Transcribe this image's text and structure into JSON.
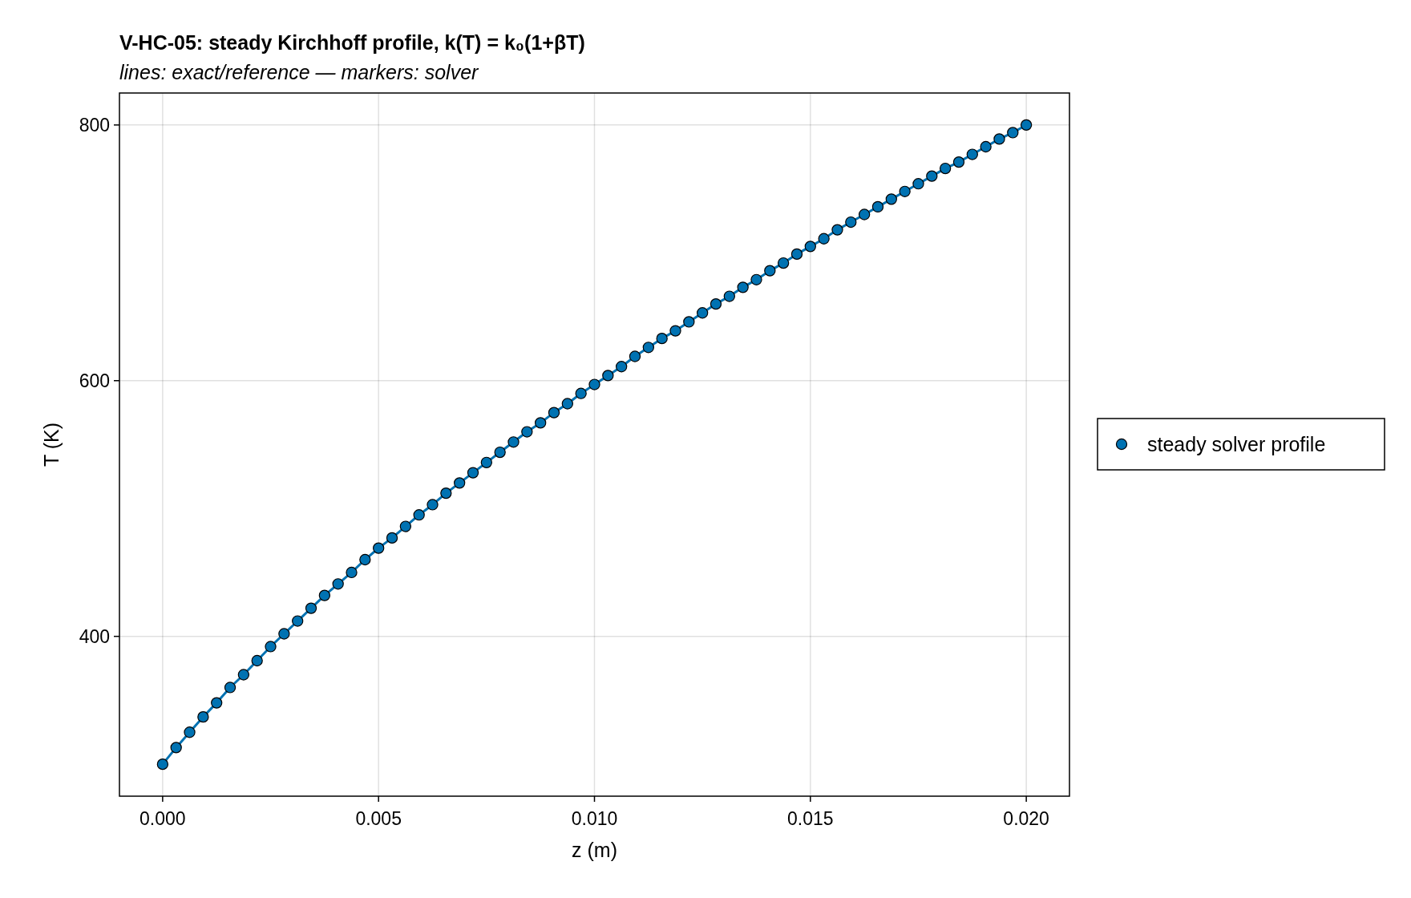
{
  "chart_data": {
    "type": "line",
    "title": "V-HC-05: steady Kirchhoff profile, k(T) = k₀(1+βT)",
    "subtitle": "lines: exact/reference — markers: solver",
    "xlabel": "z (m)",
    "ylabel": "T (K)",
    "x": [
      0,
      0.0003125,
      0.000625,
      0.0009375,
      0.00125,
      0.0015625,
      0.001875,
      0.0021875,
      0.0025,
      0.0028125,
      0.003125,
      0.0034375,
      0.00375,
      0.0040625,
      0.004375,
      0.0046875,
      0.005,
      0.0053125,
      0.005625,
      0.0059375,
      0.00625,
      0.0065625,
      0.006875,
      0.0071875,
      0.0075,
      0.0078125,
      0.008125,
      0.0084375,
      0.00875,
      0.0090625,
      0.009375,
      0.0096875,
      0.01,
      0.0103125,
      0.010625,
      0.0109375,
      0.01125,
      0.0115625,
      0.011875,
      0.0121875,
      0.0125,
      0.0128125,
      0.013125,
      0.0134375,
      0.01375,
      0.0140625,
      0.014375,
      0.0146875,
      0.015,
      0.0153125,
      0.015625,
      0.0159375,
      0.01625,
      0.0165625,
      0.016875,
      0.0171875,
      0.0175,
      0.0178125,
      0.018125,
      0.0184375,
      0.01875,
      0.0190625,
      0.019375,
      0.0196875,
      0.02
    ],
    "series": [
      {
        "color": "#0072b2",
        "values": [
          300,
          313,
          325,
          337,
          348,
          360,
          370,
          381,
          392,
          402,
          412,
          422,
          432,
          441,
          450,
          460,
          469,
          477,
          486,
          495,
          503,
          512,
          520,
          528,
          536,
          544,
          552,
          560,
          567,
          575,
          582,
          590,
          597,
          604,
          611,
          619,
          626,
          633,
          639,
          646,
          653,
          660,
          666,
          673,
          679,
          686,
          692,
          699,
          705,
          711,
          718,
          724,
          730,
          736,
          742,
          748,
          754,
          760,
          766,
          771,
          777,
          783,
          789,
          794,
          800
        ]
      },
      {
        "type": "scatter",
        "marker": "circle",
        "name": "steady solver profile",
        "color": "#0072b2",
        "values": [
          300,
          313,
          325,
          337,
          348,
          360,
          370,
          381,
          392,
          402,
          412,
          422,
          432,
          441,
          450,
          460,
          469,
          477,
          486,
          495,
          503,
          512,
          520,
          528,
          536,
          544,
          552,
          560,
          567,
          575,
          582,
          590,
          597,
          604,
          611,
          619,
          626,
          633,
          639,
          646,
          653,
          660,
          666,
          673,
          679,
          686,
          692,
          699,
          705,
          711,
          718,
          724,
          730,
          736,
          742,
          748,
          754,
          760,
          766,
          771,
          777,
          783,
          789,
          794,
          800
        ]
      }
    ],
    "xlim": [
      -0.001,
      0.021
    ],
    "ylim": [
      275,
      825
    ],
    "xticks": [
      {
        "value": 0,
        "label": "0.000"
      },
      {
        "value": 0.005,
        "label": "0.005"
      },
      {
        "value": 0.01,
        "label": "0.010"
      },
      {
        "value": 0.015,
        "label": "0.015"
      },
      {
        "value": 0.02,
        "label": "0.020"
      }
    ],
    "yticks": [
      400,
      600,
      800
    ],
    "grid": true,
    "legend": "right"
  }
}
